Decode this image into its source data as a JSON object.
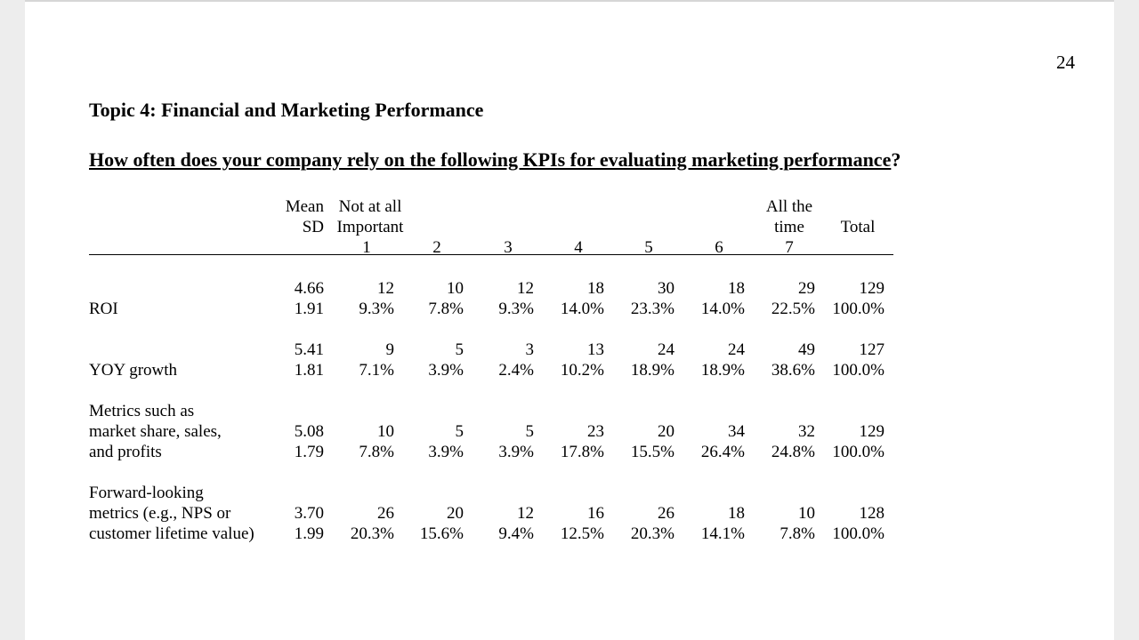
{
  "page_number": "24",
  "topic_title": "Topic 4: Financial and Marketing Performance",
  "question": {
    "text": "How often does your company rely on the following KPIs for evaluating marketing performance",
    "mark": "?"
  },
  "header": {
    "mean": "Mean",
    "sd": "SD",
    "low_line1": "Not at all",
    "low_line2": "Important",
    "high_line1": "All the",
    "high_line2": "time",
    "total": "Total",
    "scale": [
      "1",
      "2",
      "3",
      "4",
      "5",
      "6",
      "7"
    ]
  },
  "rows": [
    {
      "label": [
        "ROI"
      ],
      "mean": "4.66",
      "sd": "1.91",
      "counts": [
        "12",
        "10",
        "12",
        "18",
        "30",
        "18",
        "29",
        "129"
      ],
      "pcts": [
        "9.3%",
        "7.8%",
        "9.3%",
        "14.0%",
        "23.3%",
        "14.0%",
        "22.5%",
        "100.0%"
      ]
    },
    {
      "label": [
        "YOY growth"
      ],
      "mean": "5.41",
      "sd": "1.81",
      "counts": [
        "9",
        "5",
        "3",
        "13",
        "24",
        "24",
        "49",
        "127"
      ],
      "pcts": [
        "7.1%",
        "3.9%",
        "2.4%",
        "10.2%",
        "18.9%",
        "18.9%",
        "38.6%",
        "100.0%"
      ]
    },
    {
      "label": [
        "Metrics such as",
        "market share, sales,",
        "and profits"
      ],
      "mean": "5.08",
      "sd": "1.79",
      "counts": [
        "10",
        "5",
        "5",
        "23",
        "20",
        "34",
        "32",
        "129"
      ],
      "pcts": [
        "7.8%",
        "3.9%",
        "3.9%",
        "17.8%",
        "15.5%",
        "26.4%",
        "24.8%",
        "100.0%"
      ]
    },
    {
      "label": [
        "Forward-looking",
        "metrics (e.g., NPS or",
        "customer lifetime value)"
      ],
      "mean": "3.70",
      "sd": "1.99",
      "counts": [
        "26",
        "20",
        "12",
        "16",
        "26",
        "18",
        "10",
        "128"
      ],
      "pcts": [
        "20.3%",
        "15.6%",
        "9.4%",
        "12.5%",
        "20.3%",
        "14.1%",
        "7.8%",
        "100.0%"
      ]
    }
  ]
}
